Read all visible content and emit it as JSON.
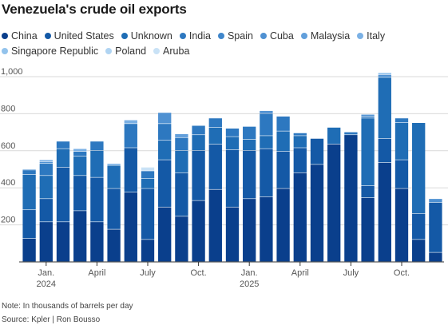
{
  "chart_data": {
    "type": "bar",
    "stacked": true,
    "title": "Venezuela's crude oil exports",
    "xlabel": "",
    "ylabel": "",
    "ylim": [
      0,
      1000
    ],
    "yticks": [
      200,
      400,
      600,
      800,
      1000
    ],
    "ytick_labels": [
      "200",
      "400",
      "600",
      "800",
      "1,000"
    ],
    "grid": true,
    "legend_position": "top",
    "categories": [
      "Dec 2023",
      "Jan 2024",
      "Feb 2024",
      "Mar 2024",
      "Apr 2024",
      "May 2024",
      "Jun 2024",
      "Jul 2024",
      "Aug 2024",
      "Sep 2024",
      "Oct 2024",
      "Nov 2024",
      "Dec 2024",
      "Jan 2025",
      "Feb 2025",
      "Mar 2025",
      "Apr 2025",
      "May 2025",
      "Jun 2025",
      "Jul 2025",
      "Aug 2025",
      "Sep 2025",
      "Oct 2025",
      "Nov 2025",
      "Dec 2025"
    ],
    "x_tick_labels": [
      {
        "index": 1,
        "lines": [
          "Jan.",
          "2024"
        ]
      },
      {
        "index": 4,
        "lines": [
          "April"
        ]
      },
      {
        "index": 7,
        "lines": [
          "July"
        ]
      },
      {
        "index": 10,
        "lines": [
          "Oct."
        ]
      },
      {
        "index": 13,
        "lines": [
          "Jan.",
          "2025"
        ]
      },
      {
        "index": 16,
        "lines": [
          "April"
        ]
      },
      {
        "index": 19,
        "lines": [
          "July"
        ]
      },
      {
        "index": 22,
        "lines": [
          "Oct."
        ]
      }
    ],
    "series": [
      {
        "name": "China",
        "color": "#0a3f8c",
        "values": [
          125,
          215,
          215,
          275,
          215,
          175,
          375,
          120,
          295,
          245,
          330,
          390,
          295,
          340,
          350,
          395,
          480,
          525,
          635,
          685,
          345,
          535,
          395,
          120,
          50
        ]
      },
      {
        "name": "United States",
        "color": "#1459a6",
        "values": [
          155,
          125,
          295,
          190,
          240,
          220,
          240,
          275,
          255,
          235,
          270,
          245,
          310,
          260,
          260,
          200,
          135,
          140,
          0,
          0,
          65,
          130,
          155,
          140,
          270
        ]
      },
      {
        "name": "Unknown",
        "color": "#1f6db5",
        "values": [
          190,
          125,
          100,
          105,
          145,
          125,
          0,
          55,
          105,
          120,
          85,
          90,
          70,
          60,
          70,
          110,
          65,
          0,
          90,
          0,
          365,
          330,
          200,
          490,
          0
        ]
      },
      {
        "name": "India",
        "color": "#2d78c0",
        "values": [
          25,
          65,
          40,
          25,
          50,
          0,
          130,
          40,
          90,
          70,
          50,
          50,
          45,
          70,
          120,
          80,
          15,
          0,
          0,
          15,
          10,
          0,
          25,
          0,
          0
        ]
      },
      {
        "name": "Spain",
        "color": "#3f86cb",
        "values": [
          0,
          0,
          0,
          0,
          0,
          0,
          0,
          0,
          0,
          0,
          0,
          0,
          0,
          0,
          0,
          0,
          0,
          0,
          0,
          0,
          0,
          0,
          0,
          0,
          0
        ]
      },
      {
        "name": "Cuba",
        "color": "#4f91d2",
        "values": [
          5,
          10,
          0,
          0,
          0,
          0,
          0,
          0,
          60,
          0,
          0,
          0,
          0,
          0,
          15,
          0,
          0,
          0,
          0,
          0,
          10,
          15,
          0,
          0,
          20
        ]
      },
      {
        "name": "Malaysia",
        "color": "#629fdb",
        "values": [
          0,
          0,
          0,
          0,
          0,
          0,
          0,
          0,
          0,
          20,
          0,
          0,
          0,
          0,
          0,
          0,
          0,
          0,
          0,
          0,
          0,
          0,
          0,
          0,
          0
        ]
      },
      {
        "name": "Italy",
        "color": "#7bb1e5",
        "values": [
          0,
          10,
          0,
          15,
          0,
          10,
          20,
          0,
          0,
          0,
          0,
          0,
          0,
          0,
          0,
          0,
          0,
          0,
          0,
          0,
          0,
          0,
          0,
          0,
          0
        ]
      },
      {
        "name": "Singapore Republic",
        "color": "#93c3ec",
        "values": [
          0,
          0,
          0,
          0,
          0,
          0,
          0,
          0,
          0,
          0,
          0,
          0,
          0,
          0,
          0,
          0,
          0,
          0,
          0,
          0,
          0,
          10,
          0,
          0,
          0
        ]
      },
      {
        "name": "Poland",
        "color": "#b0d4f2",
        "values": [
          0,
          0,
          0,
          0,
          0,
          0,
          0,
          0,
          0,
          0,
          0,
          0,
          0,
          0,
          0,
          0,
          0,
          0,
          0,
          0,
          0,
          0,
          0,
          0,
          0
        ]
      },
      {
        "name": "Aruba",
        "color": "#c9e2f6",
        "values": [
          0,
          0,
          0,
          0,
          0,
          0,
          0,
          20,
          0,
          0,
          0,
          0,
          0,
          0,
          0,
          0,
          0,
          0,
          0,
          0,
          0,
          0,
          0,
          0,
          0
        ]
      }
    ]
  },
  "note": "Note: In thousands of barrels per day",
  "source": "Source: Kpler | Ron Bousso"
}
